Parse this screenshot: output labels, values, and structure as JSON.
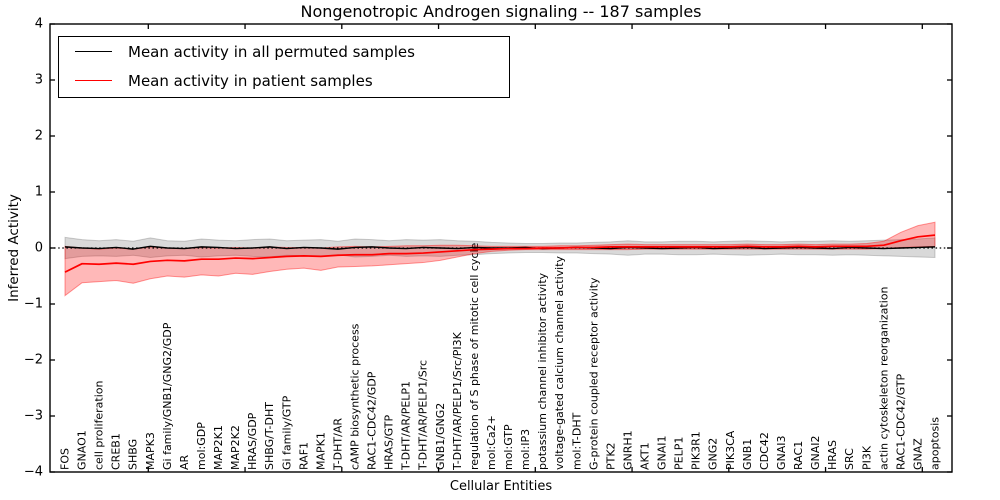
{
  "chart_data": {
    "type": "line",
    "title": "Nongenotropic Androgen signaling -- 187 samples",
    "xlabel": "Cellular Entities",
    "ylabel": "Inferred Activity",
    "ylim": [
      -4,
      4
    ],
    "yticks": [
      -4,
      -3,
      -2,
      -1,
      0,
      1,
      2,
      3,
      4
    ],
    "grid": false,
    "zero_line": "dotted black at y=0",
    "legend_position": "upper left",
    "legend": [
      "Mean activity in all permuted samples",
      "Mean activity in patient samples"
    ],
    "colors": {
      "permuted_line": "#000000",
      "patient_line": "#ff0000",
      "permuted_band_fill": "#000000",
      "permuted_band_opacity": 0.15,
      "patient_band_fill": "#ff0000",
      "patient_band_opacity": 0.28
    },
    "categories": [
      "FOS",
      "GNAO1",
      "cell proliferation",
      "CREB1",
      "SHBG",
      "MAPK3",
      "Gi family/GNB1/GNG2/GDP",
      "AR",
      "mol:GDP",
      "MAP2K1",
      "MAP2K2",
      "HRAS/GDP",
      "SHBG/T-DHT",
      "Gi family/GTP",
      "RAF1",
      "MAPK1",
      "T-DHT/AR",
      "cAMP biosynthetic process",
      "RAC1-CDC42/GDP",
      "HRAS/GTP",
      "T-DHT/AR/PELP1",
      "T-DHT/AR/PELP1/Src",
      "GNB1/GNG2",
      "T-DHT/AR/PELP1/Src/PI3K",
      "regulation of S phase of mitotic cell cycle",
      "mol:Ca2+",
      "mol:GTP",
      "mol:IP3",
      "potassium channel inhibitor activity",
      "voltage-gated calcium channel activity",
      "mol:T-DHT",
      "G-protein coupled receptor activity",
      "PTK2",
      "GNRH1",
      "AKT1",
      "GNAI1",
      "PELP1",
      "PIK3R1",
      "GNG2",
      "PIK3CA",
      "GNB1",
      "CDC42",
      "GNAI3",
      "RAC1",
      "GNAI2",
      "HRAS",
      "SRC",
      "PI3K",
      "actin cytoskeleton reorganization",
      "RAC1-CDC42/GTP",
      "GNAZ",
      "apoptosis"
    ],
    "series": [
      {
        "name": "Mean activity in all permuted samples",
        "color": "#000000",
        "values": [
          0.02,
          0.0,
          -0.01,
          0.01,
          -0.02,
          0.03,
          0.0,
          -0.01,
          0.02,
          0.01,
          -0.01,
          0.0,
          0.02,
          -0.01,
          0.01,
          0.0,
          -0.02,
          0.01,
          0.02,
          0.0,
          -0.01,
          0.01,
          0.0,
          -0.01,
          0.01,
          0.0,
          0.0,
          0.01,
          -0.01,
          0.0,
          0.01,
          0.0,
          -0.01,
          0.01,
          0.0,
          -0.01,
          0.0,
          0.01,
          -0.01,
          0.0,
          0.01,
          -0.01,
          0.0,
          0.01,
          0.0,
          -0.01,
          0.01,
          0.0,
          -0.01,
          0.0,
          0.01,
          0.02
        ],
        "band_upper": [
          0.19,
          0.15,
          0.13,
          0.15,
          0.12,
          0.18,
          0.13,
          0.12,
          0.16,
          0.14,
          0.13,
          0.15,
          0.16,
          0.13,
          0.14,
          0.15,
          0.12,
          0.16,
          0.15,
          0.13,
          0.15,
          0.14,
          0.15,
          0.13,
          0.12,
          0.1,
          0.09,
          0.08,
          0.08,
          0.09,
          0.09,
          0.1,
          0.11,
          0.13,
          0.11,
          0.11,
          0.12,
          0.12,
          0.11,
          0.12,
          0.13,
          0.12,
          0.11,
          0.12,
          0.12,
          0.13,
          0.12,
          0.13,
          0.14,
          0.15,
          0.16,
          0.18
        ],
        "band_lower": [
          -0.19,
          -0.15,
          -0.14,
          -0.15,
          -0.13,
          -0.17,
          -0.14,
          -0.13,
          -0.16,
          -0.14,
          -0.13,
          -0.15,
          -0.16,
          -0.13,
          -0.14,
          -0.15,
          -0.12,
          -0.16,
          -0.15,
          -0.13,
          -0.15,
          -0.14,
          -0.15,
          -0.13,
          -0.12,
          -0.1,
          -0.09,
          -0.08,
          -0.08,
          -0.09,
          -0.09,
          -0.1,
          -0.11,
          -0.13,
          -0.11,
          -0.11,
          -0.12,
          -0.12,
          -0.11,
          -0.12,
          -0.13,
          -0.12,
          -0.11,
          -0.12,
          -0.12,
          -0.13,
          -0.12,
          -0.13,
          -0.14,
          -0.15,
          -0.16,
          -0.17
        ]
      },
      {
        "name": "Mean activity in patient samples",
        "color": "#ff0000",
        "values": [
          -0.43,
          -0.28,
          -0.29,
          -0.27,
          -0.29,
          -0.24,
          -0.22,
          -0.23,
          -0.2,
          -0.2,
          -0.18,
          -0.19,
          -0.17,
          -0.15,
          -0.14,
          -0.15,
          -0.13,
          -0.12,
          -0.12,
          -0.1,
          -0.1,
          -0.09,
          -0.07,
          -0.05,
          -0.03,
          -0.02,
          -0.01,
          -0.01,
          0.0,
          0.0,
          0.01,
          0.01,
          0.02,
          0.02,
          0.02,
          0.02,
          0.02,
          0.02,
          0.02,
          0.02,
          0.03,
          0.02,
          0.02,
          0.03,
          0.02,
          0.03,
          0.03,
          0.03,
          0.05,
          0.13,
          0.2,
          0.23
        ],
        "band_upper": [
          0.03,
          0.0,
          -0.02,
          0.0,
          -0.02,
          0.02,
          0.0,
          -0.01,
          0.01,
          0.0,
          0.01,
          0.0,
          0.02,
          0.01,
          0.01,
          0.0,
          0.02,
          0.03,
          0.02,
          0.03,
          0.04,
          0.04,
          0.05,
          0.05,
          0.04,
          0.03,
          0.03,
          0.03,
          0.03,
          0.04,
          0.04,
          0.05,
          0.06,
          0.07,
          0.06,
          0.06,
          0.06,
          0.06,
          0.06,
          0.06,
          0.07,
          0.06,
          0.06,
          0.07,
          0.06,
          0.07,
          0.07,
          0.08,
          0.12,
          0.28,
          0.4,
          0.46
        ],
        "band_lower": [
          -0.85,
          -0.62,
          -0.6,
          -0.58,
          -0.63,
          -0.55,
          -0.5,
          -0.52,
          -0.48,
          -0.5,
          -0.45,
          -0.47,
          -0.42,
          -0.38,
          -0.36,
          -0.4,
          -0.34,
          -0.33,
          -0.32,
          -0.3,
          -0.28,
          -0.26,
          -0.22,
          -0.16,
          -0.1,
          -0.06,
          -0.04,
          -0.03,
          -0.03,
          -0.03,
          -0.03,
          -0.03,
          -0.03,
          -0.03,
          -0.02,
          -0.02,
          -0.02,
          -0.02,
          -0.02,
          -0.02,
          -0.02,
          -0.02,
          -0.02,
          -0.02,
          -0.02,
          -0.02,
          -0.02,
          -0.02,
          -0.01,
          0.01,
          0.02,
          0.03
        ]
      }
    ]
  }
}
